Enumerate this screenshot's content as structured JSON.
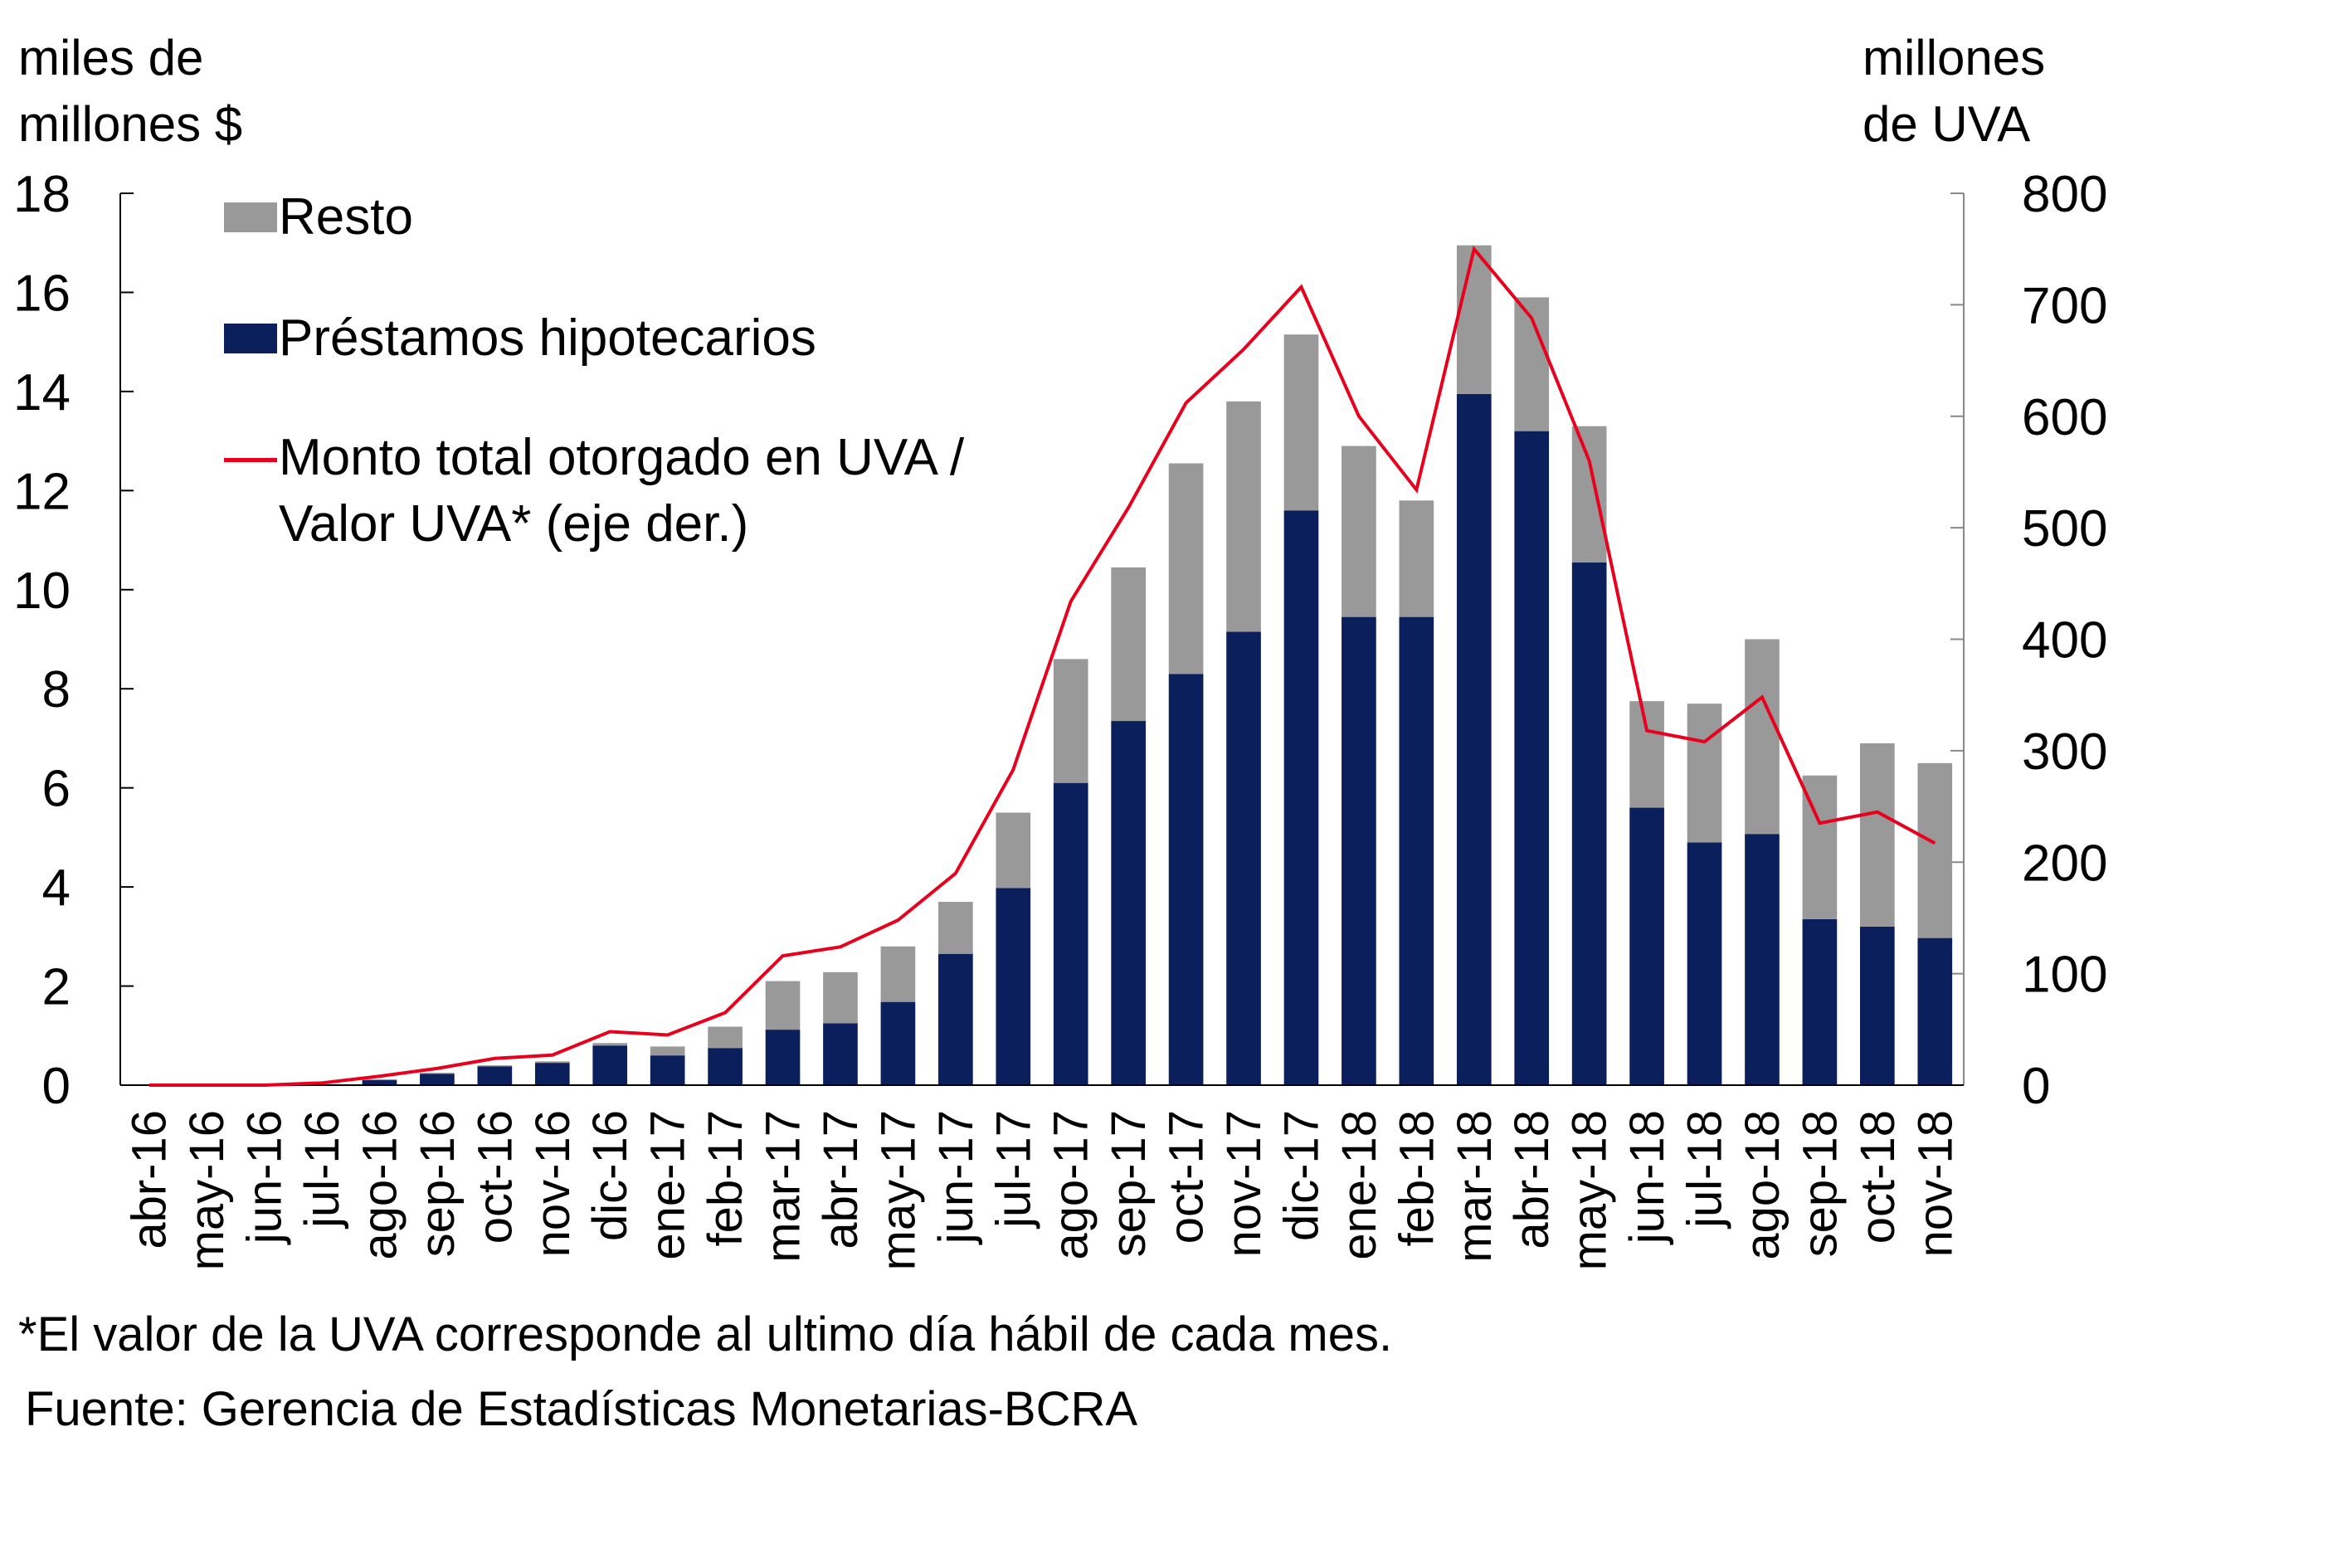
{
  "chart_data": {
    "type": "bar",
    "stacked": true,
    "title": "",
    "ylabel_left": "miles de millones $",
    "ylabel_left_lines": [
      "miles de",
      "millones $"
    ],
    "ylabel_right": "millones de UVA",
    "ylabel_right_lines": [
      "millones",
      "de UVA"
    ],
    "ylim_left": [
      0,
      18
    ],
    "ylim_right": [
      0,
      800
    ],
    "yticks_left": [
      0,
      2,
      4,
      6,
      8,
      10,
      12,
      14,
      16,
      18
    ],
    "yticks_right": [
      0,
      100,
      200,
      300,
      400,
      500,
      600,
      700,
      800
    ],
    "grid": false,
    "legend_position": "top-left",
    "categories": [
      "abr-16",
      "may-16",
      "jun-16",
      "jul-16",
      "ago-16",
      "sep-16",
      "oct-16",
      "nov-16",
      "dic-16",
      "ene-17",
      "feb-17",
      "mar-17",
      "abr-17",
      "may-17",
      "jun-17",
      "jul-17",
      "ago-17",
      "sep-17",
      "oct-17",
      "nov-17",
      "dic-17",
      "ene-18",
      "feb-18",
      "mar-18",
      "abr-18",
      "may-18",
      "jun-18",
      "jul-18",
      "ago-18",
      "sep-18",
      "oct-18",
      "nov-18"
    ],
    "series": [
      {
        "name": "Préstamos hipotecarios",
        "type": "bar",
        "axis": "left",
        "color": "#0b1f5c",
        "values": [
          0,
          0,
          0,
          0.02,
          0.1,
          0.23,
          0.38,
          0.45,
          0.8,
          0.6,
          0.75,
          1.12,
          1.25,
          1.68,
          2.65,
          3.98,
          6.1,
          7.35,
          8.3,
          9.15,
          11.6,
          9.45,
          9.45,
          13.95,
          13.2,
          10.55,
          5.6,
          4.9,
          5.07,
          3.35,
          3.2,
          2.97
        ]
      },
      {
        "name": "Resto",
        "type": "bar",
        "axis": "left",
        "color": "#999999",
        "values": [
          0,
          0,
          0,
          0,
          0.02,
          0.02,
          0.02,
          0.03,
          0.05,
          0.18,
          0.43,
          0.98,
          1.03,
          1.12,
          1.05,
          1.52,
          2.5,
          3.1,
          4.25,
          4.65,
          3.55,
          3.45,
          2.35,
          3.0,
          2.7,
          2.75,
          2.15,
          2.8,
          3.93,
          2.9,
          3.7,
          3.53
        ]
      },
      {
        "name": "Monto total otorgado en UVA / Valor UVA* (eje der.)",
        "type": "line",
        "axis": "right",
        "color": "#e8001c",
        "values": [
          0,
          0,
          0,
          2,
          8,
          15,
          24,
          27,
          48,
          45,
          65,
          116,
          124,
          148,
          190,
          283,
          434,
          518,
          612,
          660,
          716,
          600,
          534,
          750,
          688,
          560,
          318,
          308,
          348,
          235,
          245,
          217
        ]
      }
    ],
    "legend": [
      {
        "label": "Resto",
        "kind": "bar",
        "color": "#999999"
      },
      {
        "label": "Préstamos hipotecarios",
        "kind": "bar",
        "color": "#0b1f5c"
      },
      {
        "label_lines": [
          "Monto total otorgado en UVA /",
          "Valor UVA* (eje der.)"
        ],
        "kind": "line",
        "color": "#e8001c"
      }
    ],
    "annotations": [
      "*El valor de la UVA corresponde al ultimo día hábil de cada mes.",
      "Fuente: Gerencia de Estadísticas Monetarias-BCRA"
    ]
  }
}
